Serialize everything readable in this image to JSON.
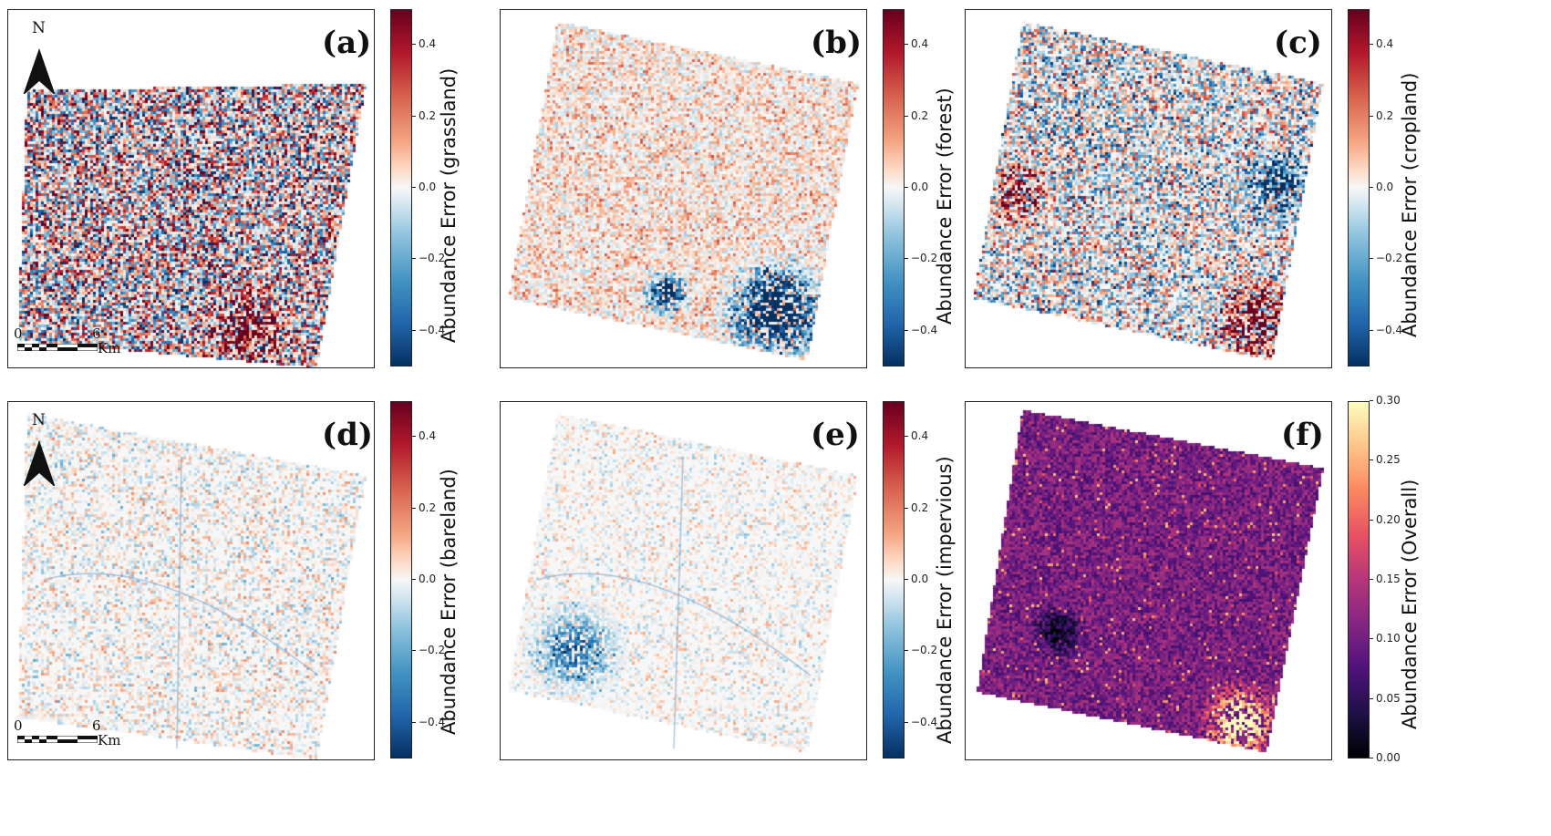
{
  "panels": [
    {
      "id": "a",
      "label": "(a)",
      "colorbar_label": "Abundance Error (grassland)",
      "cmap": "RdBu_r",
      "colorbar_ticks": [
        "0.4",
        "0.2",
        "0.0",
        "−0.2",
        "−0.4"
      ],
      "range": [
        -0.5,
        0.5
      ],
      "north_arrow": "N",
      "scalebar": {
        "start": "0",
        "end": "6",
        "unit": "Km"
      }
    },
    {
      "id": "b",
      "label": "(b)",
      "colorbar_label": "Abundance Error (forest)",
      "cmap": "RdBu_r",
      "colorbar_ticks": [
        "0.4",
        "0.2",
        "0.0",
        "−0.2",
        "−0.4"
      ],
      "range": [
        -0.5,
        0.5
      ]
    },
    {
      "id": "c",
      "label": "(c)",
      "colorbar_label": "Abundance Error (cropland)",
      "cmap": "RdBu_r",
      "colorbar_ticks": [
        "0.4",
        "0.2",
        "0.0",
        "−0.2",
        "−0.4"
      ],
      "range": [
        -0.5,
        0.5
      ]
    },
    {
      "id": "d",
      "label": "(d)",
      "colorbar_label": "Abundance Error (bareland)",
      "cmap": "RdBu_r",
      "colorbar_ticks": [
        "0.4",
        "0.2",
        "0.0",
        "−0.2",
        "−0.4"
      ],
      "range": [
        -0.5,
        0.5
      ],
      "north_arrow": "N",
      "scalebar": {
        "start": "0",
        "end": "6",
        "unit": "Km"
      }
    },
    {
      "id": "e",
      "label": "(e)",
      "colorbar_label": "Abundance Error (impervious)",
      "cmap": "RdBu_r",
      "colorbar_ticks": [
        "0.4",
        "0.2",
        "0.0",
        "−0.2",
        "−0.4"
      ],
      "range": [
        -0.5,
        0.5
      ]
    },
    {
      "id": "f",
      "label": "(f)",
      "colorbar_label": "Abundance Error (Overall)",
      "cmap": "magma",
      "colorbar_ticks": [
        "0.30",
        "0.25",
        "0.20",
        "0.15",
        "0.10",
        "0.05",
        "0.00"
      ],
      "range": [
        0,
        0.3
      ]
    }
  ],
  "colors": {
    "blue_extreme": "#053061",
    "red_extreme": "#67001f",
    "neutral": "#f7f7f7",
    "magma_low": "#000004",
    "magma_high": "#fcfdbf",
    "frame": "#222222"
  }
}
